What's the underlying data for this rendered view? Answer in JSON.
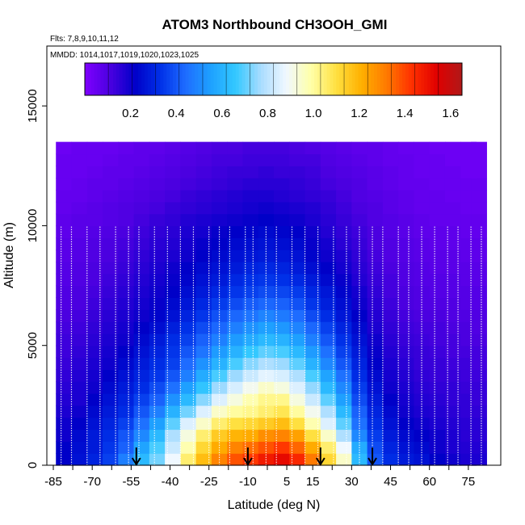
{
  "chart_data": {
    "type": "heatmap",
    "title": "ATOM3 Northbound CH3OOH_GMI",
    "flights_label": "Flts: 7,8,9,10,11,12",
    "mmdd_label": "MMDD: 1014,1017,1019,1020,1023,1025",
    "xlabel": "Latitude (deg N)",
    "ylabel": "Altitude (m)",
    "xlim": [
      -85,
      85
    ],
    "ylim": [
      0,
      17500
    ],
    "x_ticks": [
      -85,
      -70,
      -55,
      -40,
      -25,
      -10,
      5,
      15,
      30,
      45,
      60,
      75
    ],
    "x_tick_labels": [
      "-85",
      "-70",
      "-55",
      "-40",
      "-25",
      "-10",
      "5",
      "15",
      "30",
      "45",
      "60",
      "75"
    ],
    "y_ticks": [
      0,
      5000,
      10000,
      15000
    ],
    "y_tick_labels": [
      "0",
      "5000",
      "10000",
      "15000"
    ],
    "colorbar": {
      "min": 0.0,
      "max": 1.65,
      "ticks": [
        0.2,
        0.4,
        0.6,
        0.8,
        1.0,
        1.2,
        1.4,
        1.6
      ],
      "tick_labels": [
        "0.2",
        "0.4",
        "0.6",
        "0.8",
        "1.0",
        "1.2",
        "1.4",
        "1.6"
      ],
      "colors": [
        "#7f00ff",
        "#4b00e0",
        "#0000c8",
        "#0030e8",
        "#1e6cff",
        "#1ea0ff",
        "#33c8ff",
        "#a8dcff",
        "#f0f8ff",
        "#ffffa8",
        "#ffe040",
        "#ffb000",
        "#ff7a00",
        "#ff3000",
        "#e00000",
        "#b01818"
      ]
    },
    "arrow_latitudes": [
      -53,
      -10,
      18,
      38
    ],
    "profile_latitudes": [
      -82,
      -78,
      -72,
      -67,
      -61,
      -56,
      -52,
      -46,
      -41,
      -36,
      -31,
      -25,
      -21,
      -17,
      -11,
      -8,
      -3,
      1,
      7,
      12,
      17,
      23,
      28,
      33,
      38,
      42,
      48,
      52,
      57,
      62,
      67,
      71,
      76,
      80
    ],
    "grid": {
      "lats": [
        -81,
        -75,
        -69,
        -63,
        -57,
        -51,
        -45,
        -39,
        -33,
        -27,
        -21,
        -15,
        -9,
        -3,
        3,
        9,
        15,
        21,
        27,
        33,
        39,
        45,
        51,
        57,
        63,
        69,
        75,
        79
      ],
      "alts": [
        250,
        750,
        1250,
        1750,
        2250,
        2750,
        3250,
        3750,
        4250,
        4750,
        5250,
        5750,
        6250,
        6750,
        7250,
        7750,
        8250,
        8750,
        9250,
        9750,
        10250,
        10750,
        11250,
        11750,
        12250,
        12750,
        13250
      ],
      "values": [
        [
          0.22,
          0.26,
          0.3,
          0.36,
          0.48,
          0.62,
          0.72,
          0.88,
          1.05,
          1.18,
          1.3,
          1.38,
          1.42,
          1.48,
          1.52,
          1.45,
          1.32,
          1.12,
          0.95,
          0.62,
          0.4,
          0.32,
          0.28,
          0.26,
          0.22,
          0.2,
          0.18,
          0.18
        ],
        [
          0.22,
          0.25,
          0.28,
          0.34,
          0.42,
          0.56,
          0.68,
          0.82,
          0.98,
          1.12,
          1.22,
          1.3,
          1.34,
          1.38,
          1.42,
          1.35,
          1.22,
          1.05,
          0.88,
          0.58,
          0.38,
          0.3,
          0.26,
          0.24,
          0.2,
          0.18,
          0.17,
          0.17
        ],
        [
          0.2,
          0.24,
          0.28,
          0.32,
          0.4,
          0.5,
          0.62,
          0.78,
          0.92,
          1.05,
          1.15,
          1.2,
          1.22,
          1.28,
          1.3,
          1.24,
          1.1,
          0.95,
          0.78,
          0.5,
          0.35,
          0.28,
          0.24,
          0.22,
          0.2,
          0.18,
          0.16,
          0.16
        ],
        [
          0.2,
          0.22,
          0.26,
          0.3,
          0.36,
          0.45,
          0.55,
          0.7,
          0.85,
          0.95,
          1.05,
          1.1,
          1.12,
          1.15,
          1.18,
          1.1,
          0.98,
          0.85,
          0.7,
          0.45,
          0.32,
          0.26,
          0.22,
          0.2,
          0.18,
          0.17,
          0.16,
          0.16
        ],
        [
          0.18,
          0.2,
          0.24,
          0.28,
          0.32,
          0.4,
          0.48,
          0.6,
          0.72,
          0.85,
          0.95,
          1.0,
          1.02,
          1.05,
          1.08,
          1.0,
          0.9,
          0.78,
          0.62,
          0.42,
          0.3,
          0.24,
          0.2,
          0.18,
          0.17,
          0.16,
          0.15,
          0.15
        ],
        [
          0.17,
          0.18,
          0.22,
          0.26,
          0.3,
          0.36,
          0.42,
          0.52,
          0.62,
          0.74,
          0.85,
          0.92,
          0.98,
          1.02,
          1.02,
          0.92,
          0.82,
          0.7,
          0.55,
          0.38,
          0.28,
          0.22,
          0.19,
          0.17,
          0.16,
          0.15,
          0.15,
          0.14
        ],
        [
          0.16,
          0.18,
          0.2,
          0.24,
          0.28,
          0.32,
          0.38,
          0.45,
          0.55,
          0.65,
          0.76,
          0.84,
          0.9,
          0.95,
          0.92,
          0.85,
          0.75,
          0.62,
          0.5,
          0.35,
          0.26,
          0.2,
          0.18,
          0.16,
          0.15,
          0.15,
          0.14,
          0.14
        ],
        [
          0.15,
          0.17,
          0.19,
          0.22,
          0.26,
          0.3,
          0.34,
          0.4,
          0.48,
          0.58,
          0.68,
          0.76,
          0.82,
          0.86,
          0.84,
          0.78,
          0.68,
          0.56,
          0.45,
          0.32,
          0.24,
          0.19,
          0.17,
          0.15,
          0.14,
          0.14,
          0.13,
          0.13
        ],
        [
          0.14,
          0.16,
          0.18,
          0.2,
          0.24,
          0.28,
          0.32,
          0.36,
          0.44,
          0.52,
          0.6,
          0.68,
          0.74,
          0.78,
          0.76,
          0.7,
          0.6,
          0.5,
          0.4,
          0.3,
          0.22,
          0.18,
          0.16,
          0.14,
          0.14,
          0.13,
          0.13,
          0.12
        ],
        [
          0.13,
          0.15,
          0.17,
          0.19,
          0.22,
          0.26,
          0.3,
          0.34,
          0.4,
          0.46,
          0.54,
          0.6,
          0.66,
          0.7,
          0.68,
          0.62,
          0.54,
          0.45,
          0.36,
          0.28,
          0.21,
          0.17,
          0.15,
          0.14,
          0.13,
          0.12,
          0.12,
          0.12
        ],
        [
          0.13,
          0.14,
          0.16,
          0.18,
          0.2,
          0.24,
          0.28,
          0.32,
          0.36,
          0.42,
          0.48,
          0.54,
          0.58,
          0.62,
          0.6,
          0.55,
          0.48,
          0.4,
          0.33,
          0.26,
          0.2,
          0.16,
          0.14,
          0.13,
          0.12,
          0.12,
          0.11,
          0.11
        ],
        [
          0.12,
          0.13,
          0.15,
          0.17,
          0.19,
          0.22,
          0.25,
          0.29,
          0.33,
          0.38,
          0.43,
          0.48,
          0.52,
          0.55,
          0.53,
          0.49,
          0.43,
          0.36,
          0.3,
          0.24,
          0.18,
          0.15,
          0.13,
          0.12,
          0.12,
          0.11,
          0.11,
          0.1
        ],
        [
          0.11,
          0.12,
          0.14,
          0.16,
          0.18,
          0.2,
          0.23,
          0.26,
          0.3,
          0.34,
          0.39,
          0.43,
          0.46,
          0.49,
          0.47,
          0.44,
          0.38,
          0.32,
          0.27,
          0.22,
          0.17,
          0.14,
          0.12,
          0.11,
          0.11,
          0.1,
          0.1,
          0.1
        ],
        [
          0.1,
          0.11,
          0.13,
          0.15,
          0.17,
          0.19,
          0.21,
          0.24,
          0.27,
          0.31,
          0.35,
          0.38,
          0.41,
          0.43,
          0.42,
          0.39,
          0.34,
          0.29,
          0.25,
          0.2,
          0.16,
          0.13,
          0.11,
          0.1,
          0.1,
          0.1,
          0.09,
          0.09
        ],
        [
          0.1,
          0.11,
          0.12,
          0.14,
          0.16,
          0.18,
          0.2,
          0.22,
          0.25,
          0.28,
          0.31,
          0.34,
          0.36,
          0.38,
          0.37,
          0.35,
          0.31,
          0.27,
          0.23,
          0.19,
          0.15,
          0.12,
          0.11,
          0.1,
          0.09,
          0.09,
          0.09,
          0.09
        ],
        [
          0.09,
          0.1,
          0.11,
          0.13,
          0.15,
          0.17,
          0.19,
          0.21,
          0.23,
          0.26,
          0.28,
          0.31,
          0.33,
          0.34,
          0.33,
          0.31,
          0.28,
          0.24,
          0.21,
          0.17,
          0.14,
          0.12,
          0.1,
          0.09,
          0.09,
          0.09,
          0.08,
          0.08
        ],
        [
          0.09,
          0.1,
          0.11,
          0.12,
          0.14,
          0.16,
          0.18,
          0.2,
          0.22,
          0.24,
          0.26,
          0.28,
          0.3,
          0.31,
          0.3,
          0.28,
          0.25,
          0.22,
          0.19,
          0.16,
          0.13,
          0.11,
          0.1,
          0.09,
          0.08,
          0.08,
          0.08,
          0.08
        ],
        [
          0.08,
          0.09,
          0.1,
          0.11,
          0.13,
          0.15,
          0.17,
          0.18,
          0.2,
          0.22,
          0.24,
          0.26,
          0.27,
          0.28,
          0.27,
          0.26,
          0.23,
          0.2,
          0.18,
          0.15,
          0.12,
          0.1,
          0.09,
          0.08,
          0.08,
          0.08,
          0.07,
          0.07
        ],
        [
          0.08,
          0.09,
          0.1,
          0.11,
          0.12,
          0.14,
          0.16,
          0.17,
          0.19,
          0.21,
          0.22,
          0.24,
          0.25,
          0.26,
          0.25,
          0.24,
          0.21,
          0.19,
          0.16,
          0.14,
          0.11,
          0.1,
          0.09,
          0.08,
          0.07,
          0.07,
          0.07,
          0.07
        ],
        [
          0.07,
          0.08,
          0.09,
          0.1,
          0.11,
          0.13,
          0.15,
          0.16,
          0.18,
          0.19,
          0.21,
          0.22,
          0.23,
          0.24,
          0.23,
          0.22,
          0.2,
          0.17,
          0.15,
          0.13,
          0.11,
          0.09,
          0.08,
          0.07,
          0.07,
          0.07,
          0.06,
          0.06
        ],
        [
          0.07,
          0.08,
          0.08,
          0.09,
          0.1,
          0.12,
          0.14,
          0.15,
          0.17,
          0.18,
          0.19,
          0.2,
          0.21,
          0.22,
          0.21,
          0.2,
          0.18,
          0.16,
          0.14,
          0.12,
          0.1,
          0.09,
          0.08,
          0.07,
          0.06,
          0.06,
          0.06,
          0.06
        ],
        [
          0.06,
          0.07,
          0.08,
          0.09,
          0.1,
          0.11,
          0.12,
          0.14,
          0.15,
          0.16,
          0.17,
          0.18,
          0.19,
          0.2,
          0.19,
          0.18,
          0.17,
          0.15,
          0.13,
          0.11,
          0.1,
          0.08,
          0.07,
          0.06,
          0.06,
          0.06,
          0.05,
          0.05
        ],
        [
          0.06,
          0.06,
          0.07,
          0.08,
          0.09,
          0.1,
          0.11,
          0.12,
          0.14,
          0.15,
          0.16,
          0.17,
          0.18,
          0.18,
          0.17,
          0.16,
          0.15,
          0.14,
          0.12,
          0.1,
          0.09,
          0.08,
          0.07,
          0.06,
          0.06,
          0.05,
          0.05,
          0.05
        ],
        [
          0.05,
          0.06,
          0.07,
          0.07,
          0.08,
          0.09,
          0.1,
          0.11,
          0.12,
          0.13,
          0.14,
          0.15,
          0.16,
          0.16,
          0.16,
          0.15,
          0.14,
          0.12,
          0.11,
          0.1,
          0.08,
          0.07,
          0.06,
          0.06,
          0.05,
          0.05,
          0.05,
          0.05
        ],
        [
          0.05,
          0.05,
          0.06,
          0.07,
          0.07,
          0.08,
          0.09,
          0.1,
          0.11,
          0.12,
          0.13,
          0.14,
          0.14,
          0.15,
          0.14,
          0.14,
          0.13,
          0.11,
          0.1,
          0.09,
          0.08,
          0.07,
          0.06,
          0.05,
          0.05,
          0.05,
          0.04,
          0.04
        ],
        [
          0.05,
          0.05,
          0.05,
          0.06,
          0.07,
          0.07,
          0.08,
          0.09,
          0.1,
          0.11,
          0.12,
          0.12,
          0.13,
          0.13,
          0.13,
          0.12,
          0.12,
          0.1,
          0.09,
          0.08,
          0.07,
          0.06,
          0.06,
          0.05,
          0.05,
          0.04,
          0.04,
          0.04
        ],
        [
          0.04,
          0.05,
          0.05,
          0.05,
          0.06,
          0.07,
          0.07,
          0.08,
          0.09,
          0.1,
          0.11,
          0.11,
          0.12,
          0.12,
          0.12,
          0.11,
          0.1,
          0.09,
          0.08,
          0.07,
          0.07,
          0.06,
          0.05,
          0.05,
          0.04,
          0.04,
          0.04,
          0.04
        ]
      ]
    }
  }
}
